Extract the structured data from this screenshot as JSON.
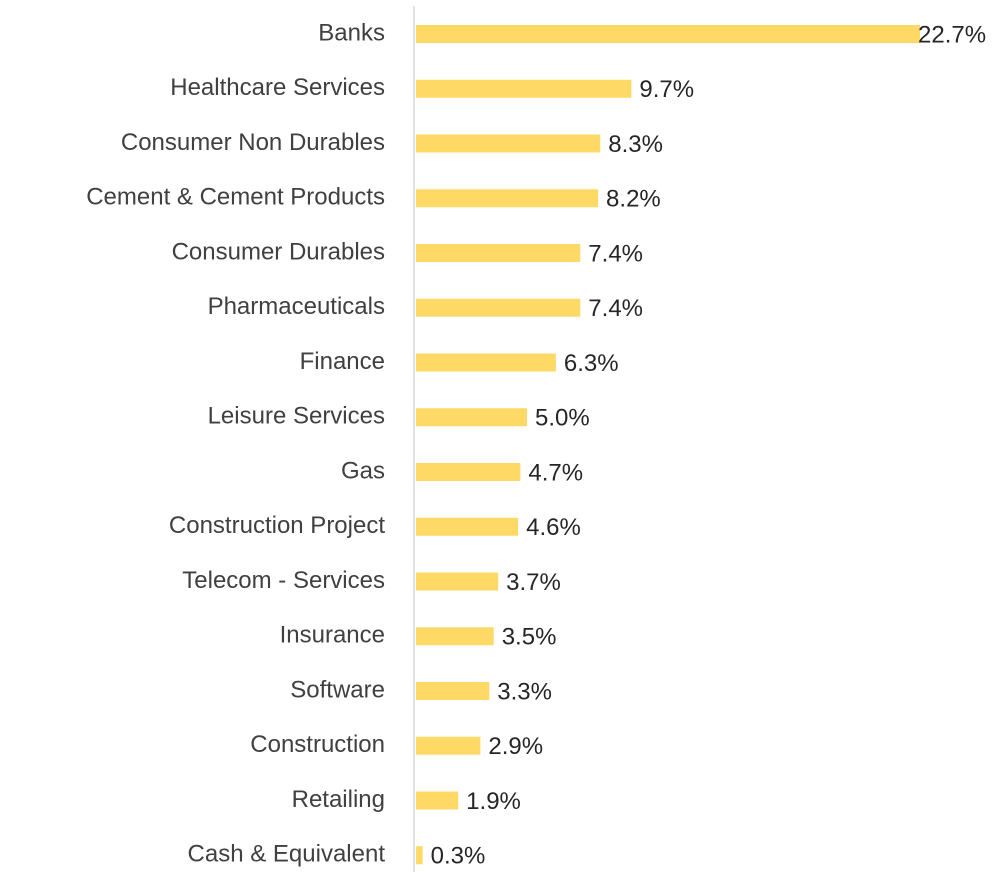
{
  "chart_data": {
    "type": "barh",
    "categories": [
      "Banks",
      "Healthcare Services",
      "Consumer Non Durables",
      "Cement & Cement Products",
      "Consumer Durables",
      "Pharmaceuticals",
      "Finance",
      "Leisure Services",
      "Gas",
      "Construction Project",
      "Telecom - Services",
      "Insurance",
      "Software",
      "Construction",
      "Retailing",
      "Cash & Equivalent"
    ],
    "values": [
      22.7,
      9.7,
      8.3,
      8.2,
      7.4,
      7.4,
      6.3,
      5.0,
      4.7,
      4.6,
      3.7,
      3.5,
      3.3,
      2.9,
      1.9,
      0.3
    ],
    "value_labels": [
      "22.7%",
      "9.7%",
      "8.3%",
      "8.2%",
      "7.4%",
      "7.4%",
      "6.3%",
      "5.0%",
      "4.7%",
      "4.6%",
      "3.7%",
      "3.5%",
      "3.3%",
      "2.9%",
      "1.9%",
      "0.3%"
    ],
    "color": "#ffd966"
  }
}
